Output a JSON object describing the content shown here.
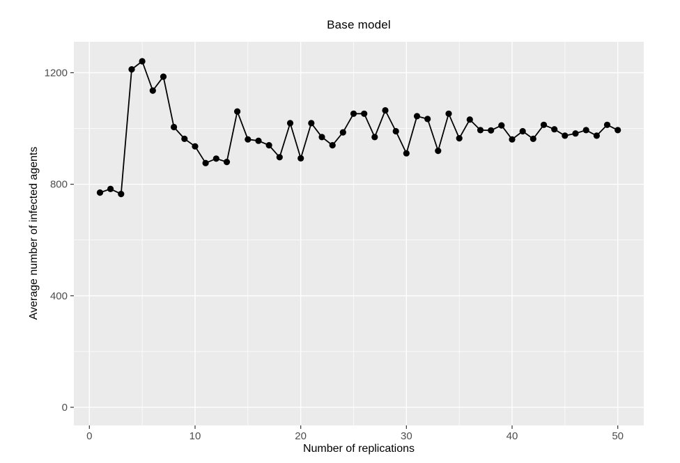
{
  "chart_data": {
    "type": "line",
    "title": "Base model",
    "xlabel": "Number of replications",
    "ylabel": "Average number of infected agents",
    "legend": "none",
    "grid": "major+minor",
    "marker": "filled-circle",
    "x": [
      1,
      2,
      3,
      4,
      5,
      6,
      7,
      8,
      9,
      10,
      11,
      12,
      13,
      14,
      15,
      16,
      17,
      18,
      19,
      20,
      21,
      22,
      23,
      24,
      25,
      26,
      27,
      28,
      29,
      30,
      31,
      32,
      33,
      34,
      35,
      36,
      37,
      38,
      39,
      40,
      41,
      42,
      43,
      44,
      45,
      46,
      47,
      48,
      49,
      50
    ],
    "values": [
      770,
      783,
      765,
      1212,
      1241,
      1136,
      1186,
      1005,
      963,
      936,
      876,
      892,
      880,
      1061,
      961,
      956,
      940,
      897,
      1019,
      893,
      1019,
      969,
      940,
      986,
      1053,
      1053,
      969,
      1065,
      990,
      911,
      1044,
      1034,
      920,
      1053,
      965,
      1032,
      994,
      993,
      1011,
      961,
      990,
      963,
      1013,
      997,
      974,
      982,
      994,
      974,
      1013,
      994
    ],
    "x_major_ticks": [
      0,
      10,
      20,
      30,
      40,
      50
    ],
    "x_minor_ticks": [
      5,
      15,
      25,
      35,
      45
    ],
    "y_major_ticks": [
      0,
      400,
      800,
      1200
    ],
    "y_minor_ticks": [
      200,
      600,
      1000
    ],
    "xlim": [
      -1.47,
      52.46
    ],
    "ylim": [
      -65,
      1311
    ],
    "colors": {
      "panel_bg": "#EBEBEB",
      "grid": "#FFFFFF",
      "line": "#000000",
      "point": "#000000",
      "tick_label": "#4D4D4D",
      "tick_mark": "#333333",
      "axis_title": "#000000",
      "figure_bg": "#FFFFFF"
    }
  }
}
